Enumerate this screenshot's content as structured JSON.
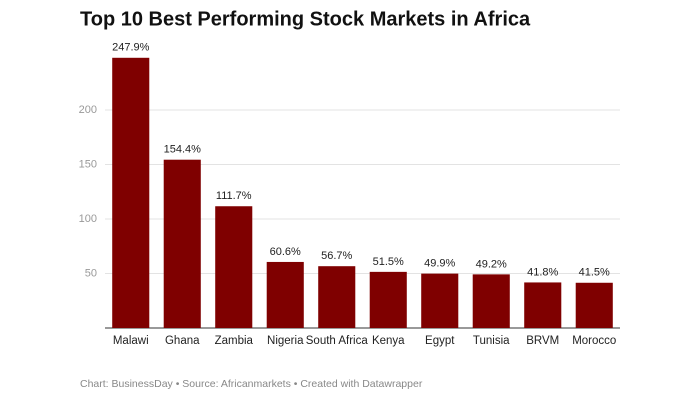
{
  "chart_data": {
    "type": "bar",
    "title": "Top 10 Best Performing Stock Markets in Africa",
    "categories": [
      "Malawi",
      "Ghana",
      "Zambia",
      "Nigeria",
      "South Africa",
      "Kenya",
      "Egypt",
      "Tunisia",
      "BRVM",
      "Morocco"
    ],
    "values": [
      247.9,
      154.4,
      111.7,
      60.6,
      56.7,
      51.5,
      49.9,
      49.2,
      41.8,
      41.5
    ],
    "value_labels": [
      "247.9%",
      "154.4%",
      "111.7%",
      "60.6%",
      "56.7%",
      "51.5%",
      "49.9%",
      "49.2%",
      "41.8%",
      "41.5%"
    ],
    "color": "#7f0000",
    "ylim": [
      0,
      250
    ],
    "yticks": [
      50,
      100,
      150,
      200
    ],
    "grid": true,
    "footer": "Chart: BusinessDay • Source: Africanmarkets • Created with Datawrapper"
  }
}
